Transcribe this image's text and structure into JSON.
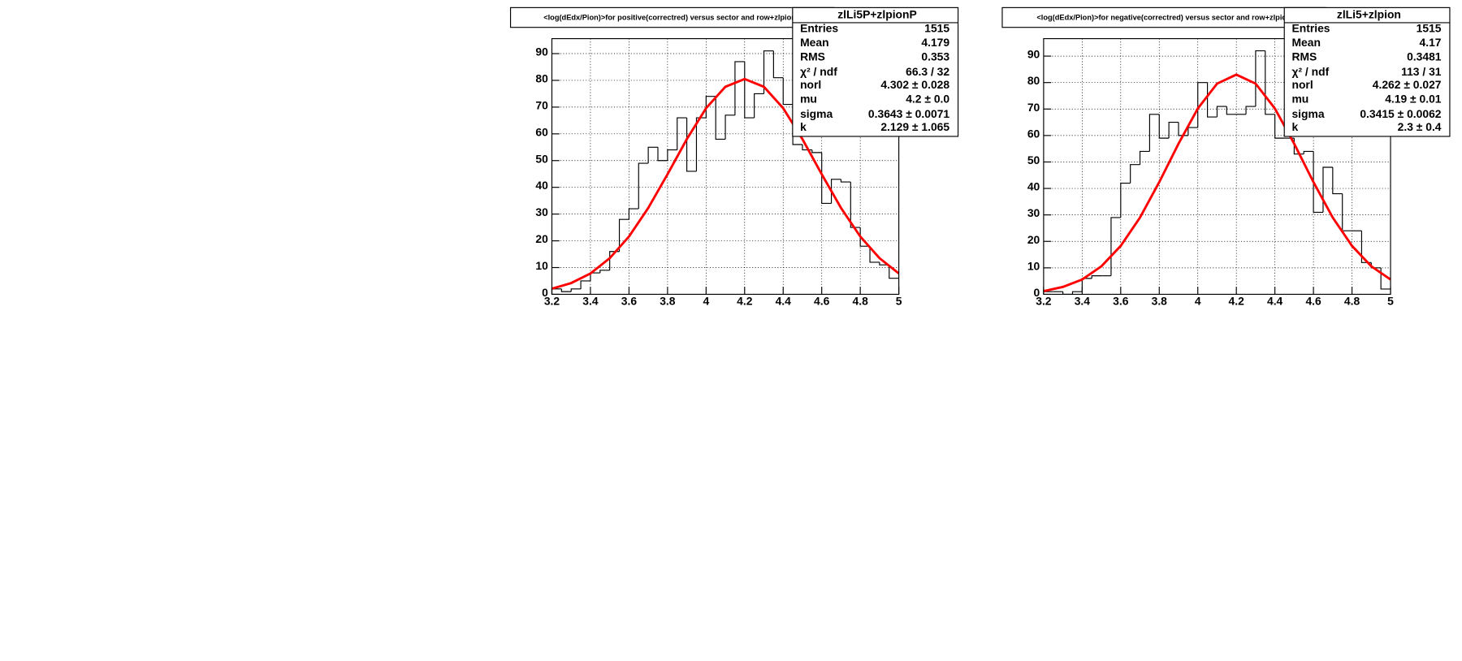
{
  "chart_data": [
    {
      "type": "histogram",
      "title": "<log(dEdx/Pion)>for positive(correctred) versus sector and row+zlpionP",
      "stats": {
        "name": "zlLi5P+zlpionP",
        "rows": [
          {
            "label": "Entries",
            "value": "1515"
          },
          {
            "label": "Mean",
            "value": "4.179"
          },
          {
            "label": "RMS",
            "value": "0.353"
          },
          {
            "label": "χ² / ndf",
            "value": "66.3 / 32"
          },
          {
            "label": "norl",
            "value": "4.302 ± 0.028"
          },
          {
            "label": "mu",
            "value": "4.2 ± 0.0"
          },
          {
            "label": "sigma",
            "value": "0.3643 ± 0.0071"
          },
          {
            "label": "k",
            "value": "2.129 ± 1.065"
          }
        ]
      },
      "bins": [
        3.2,
        3.25,
        3.3,
        3.35,
        3.4,
        3.45,
        3.5,
        3.55,
        3.6,
        3.65,
        3.7,
        3.75,
        3.8,
        3.85,
        3.9,
        3.95,
        4.0,
        4.05,
        4.1,
        4.15,
        4.2,
        4.25,
        4.3,
        4.35,
        4.4,
        4.45,
        4.5,
        4.55,
        4.6,
        4.65,
        4.7,
        4.75,
        4.8,
        4.85,
        4.9,
        4.95,
        5.0
      ],
      "values": [
        2,
        1,
        2,
        5,
        8,
        9,
        16,
        28,
        32,
        49,
        55,
        50,
        54,
        66,
        46,
        66,
        74,
        58,
        67,
        87,
        66,
        75,
        91,
        81,
        71,
        56,
        54,
        53,
        34,
        43,
        42,
        25,
        18,
        12,
        11,
        6
      ],
      "color": "#000000",
      "fit": {
        "color": "#ff0000",
        "x": [
          3.2,
          3.3,
          3.4,
          3.5,
          3.6,
          3.7,
          3.8,
          3.9,
          4.0,
          4.1,
          4.2,
          4.3,
          4.4,
          4.5,
          4.6,
          4.7,
          4.8,
          4.9,
          5.0
        ],
        "values": [
          2.1,
          4.2,
          7.8,
          13.5,
          21.6,
          32.3,
          44.9,
          58.0,
          69.6,
          77.6,
          80.5,
          77.6,
          69.6,
          58.0,
          44.9,
          32.3,
          21.6,
          13.5,
          7.8
        ]
      },
      "xlim": [
        3.2,
        5
      ],
      "ylim": [
        0,
        95.6
      ],
      "xticks": [
        3.2,
        3.4,
        3.6,
        3.8,
        4,
        4.2,
        4.4,
        4.6,
        4.8,
        5
      ],
      "yticks": [
        0,
        10,
        20,
        30,
        40,
        50,
        60,
        70,
        80,
        90
      ],
      "grid": true
    },
    {
      "type": "histogram",
      "title": "<log(dEdx/Pion)>for negative(correctred) versus sector and row+zlpion",
      "stats": {
        "name": "zlLi5+zlpion",
        "rows": [
          {
            "label": "Entries",
            "value": "1515"
          },
          {
            "label": "Mean",
            "value": "4.17"
          },
          {
            "label": "RMS",
            "value": "0.3481"
          },
          {
            "label": "χ² / ndf",
            "value": "113 / 31"
          },
          {
            "label": "norl",
            "value": "4.262 ± 0.027"
          },
          {
            "label": "mu",
            "value": "4.19 ± 0.01"
          },
          {
            "label": "sigma",
            "value": "0.3415 ± 0.0062"
          },
          {
            "label": "k",
            "value": "2.3 ± 0.4"
          }
        ]
      },
      "bins": [
        3.2,
        3.25,
        3.3,
        3.35,
        3.4,
        3.45,
        3.5,
        3.55,
        3.6,
        3.65,
        3.7,
        3.75,
        3.8,
        3.85,
        3.9,
        3.95,
        4.0,
        4.05,
        4.1,
        4.15,
        4.2,
        4.25,
        4.3,
        4.35,
        4.4,
        4.45,
        4.5,
        4.55,
        4.6,
        4.65,
        4.7,
        4.75,
        4.8,
        4.85,
        4.9,
        4.95,
        5.0
      ],
      "values": [
        1,
        1,
        0,
        1,
        6,
        7,
        7,
        29,
        42,
        49,
        54,
        68,
        59,
        65,
        60,
        63,
        80,
        67,
        71,
        68,
        68,
        71,
        92,
        68,
        59,
        59,
        53,
        54,
        31,
        48,
        38,
        24,
        24,
        12,
        10,
        2
      ],
      "color": "#000000",
      "fit": {
        "color": "#ff0000",
        "x": [
          3.2,
          3.3,
          3.4,
          3.5,
          3.6,
          3.7,
          3.8,
          3.9,
          4.0,
          4.1,
          4.2,
          4.3,
          4.4,
          4.5,
          4.6,
          4.7,
          4.8,
          4.9,
          5.0
        ],
        "values": [
          1.2,
          2.8,
          5.6,
          10.6,
          18.3,
          29.0,
          42.4,
          56.9,
          70.2,
          79.6,
          83,
          79.6,
          70.2,
          56.9,
          42.4,
          29.0,
          18.3,
          10.6,
          5.6
        ]
      },
      "xlim": [
        3.2,
        5
      ],
      "ylim": [
        0,
        96.6
      ],
      "xticks": [
        3.2,
        3.4,
        3.6,
        3.8,
        4,
        4.2,
        4.4,
        4.6,
        4.8,
        5
      ],
      "yticks": [
        0,
        10,
        20,
        30,
        40,
        50,
        60,
        70,
        80,
        90
      ],
      "grid": true
    }
  ]
}
